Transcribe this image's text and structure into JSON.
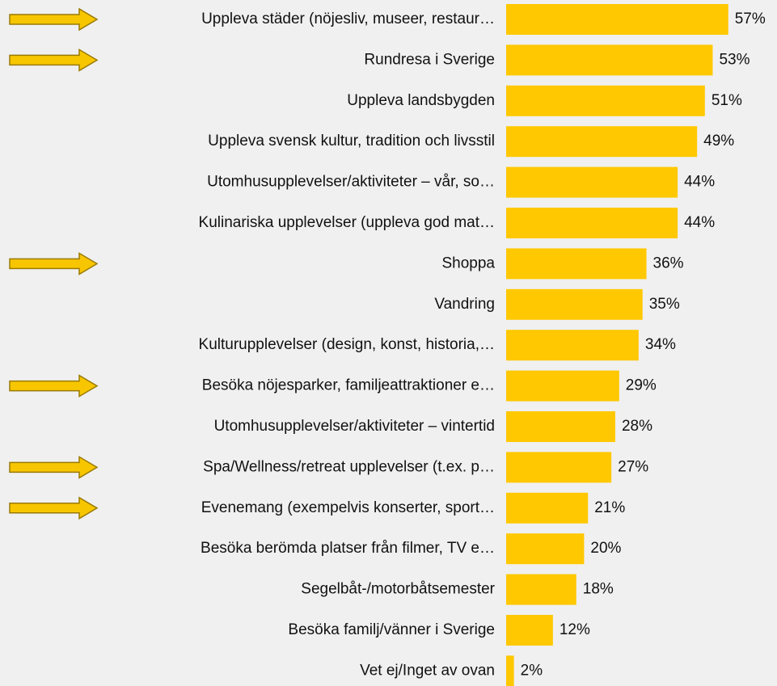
{
  "chart_data": {
    "type": "bar",
    "orientation": "horizontal",
    "color": "#ffc800",
    "categories": [
      "Uppleva städer (nöjesliv, museer, restaur…",
      "Rundresa i Sverige",
      "Uppleva landsbygden",
      "Uppleva svensk kultur, tradition och livsstil",
      "Utomhusupplevelser/aktiviteter – vår, so…",
      "Kulinariska upplevelser (uppleva god mat…",
      "Shoppa",
      "Vandring",
      "Kulturupplevelser (design, konst, historia,…",
      "Besöka nöjesparker, familjeattraktioner e…",
      "Utomhusupplevelser/aktiviteter – vintertid",
      "Spa/Wellness/retreat upplevelser (t.ex. p…",
      "Evenemang (exempelvis konserter, sport…",
      "Besöka berömda platser från filmer, TV e…",
      "Segelbåt-/motorbåtsemester",
      "Besöka familj/vänner i Sverige",
      "Vet ej/Inget av ovan"
    ],
    "values": [
      57,
      53,
      51,
      49,
      44,
      44,
      36,
      35,
      34,
      29,
      28,
      27,
      21,
      20,
      18,
      12,
      2
    ],
    "value_labels": [
      "57%",
      "53%",
      "51%",
      "49%",
      "44%",
      "44%",
      "36%",
      "35%",
      "34%",
      "29%",
      "28%",
      "27%",
      "21%",
      "20%",
      "18%",
      "12%",
      "2%"
    ]
  }
}
